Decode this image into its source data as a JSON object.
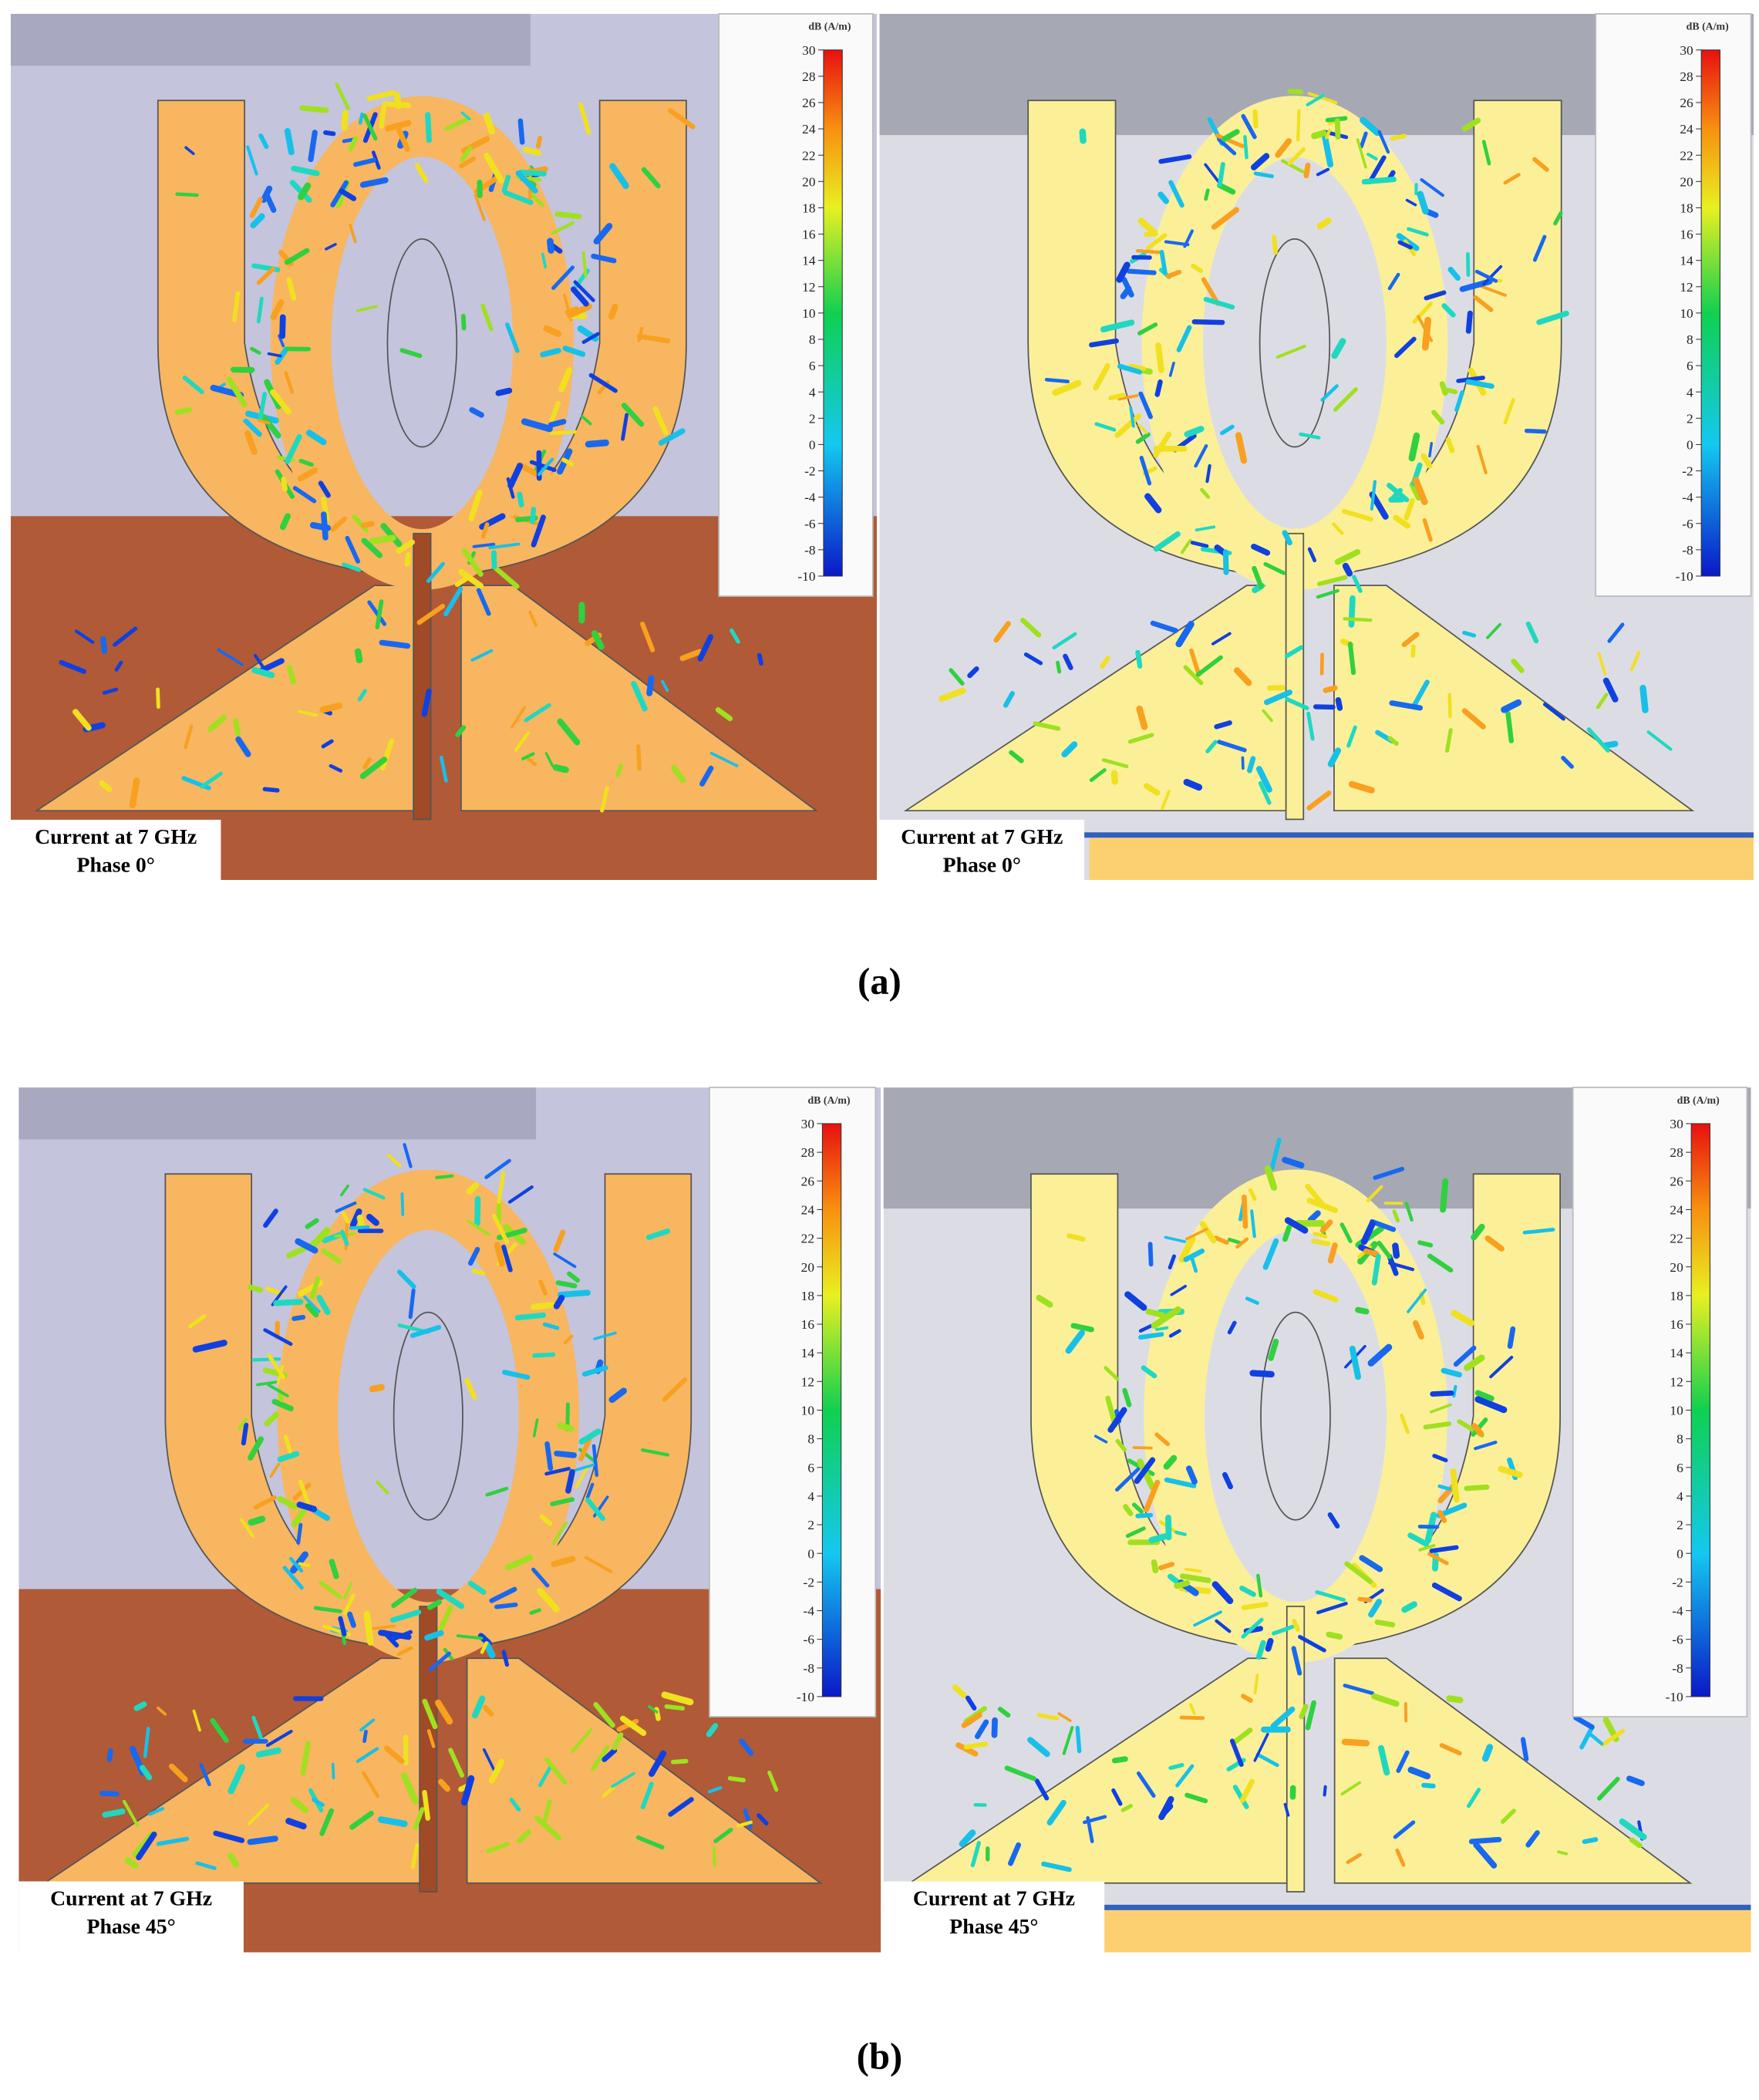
{
  "colorbar": {
    "unit": "dB (A/m)",
    "ticks": [
      30,
      28,
      26,
      24,
      22,
      20,
      18,
      16,
      14,
      12,
      10,
      8,
      6,
      4,
      2,
      0,
      -2,
      -4,
      -6,
      -8,
      -10
    ]
  },
  "panels": [
    {
      "label": "(a)",
      "views": [
        {
          "caption": [
            "Current at 7 GHz",
            "Phase 0°"
          ]
        },
        {
          "caption": [
            "Current at 7 GHz",
            "Phase 0°"
          ]
        }
      ]
    },
    {
      "label": "(b)",
      "views": [
        {
          "caption": [
            "Current at 7 GHz",
            "Phase 45°"
          ]
        },
        {
          "caption": [
            "Current at 7 GHz",
            "Phase 45°"
          ]
        }
      ]
    }
  ]
}
